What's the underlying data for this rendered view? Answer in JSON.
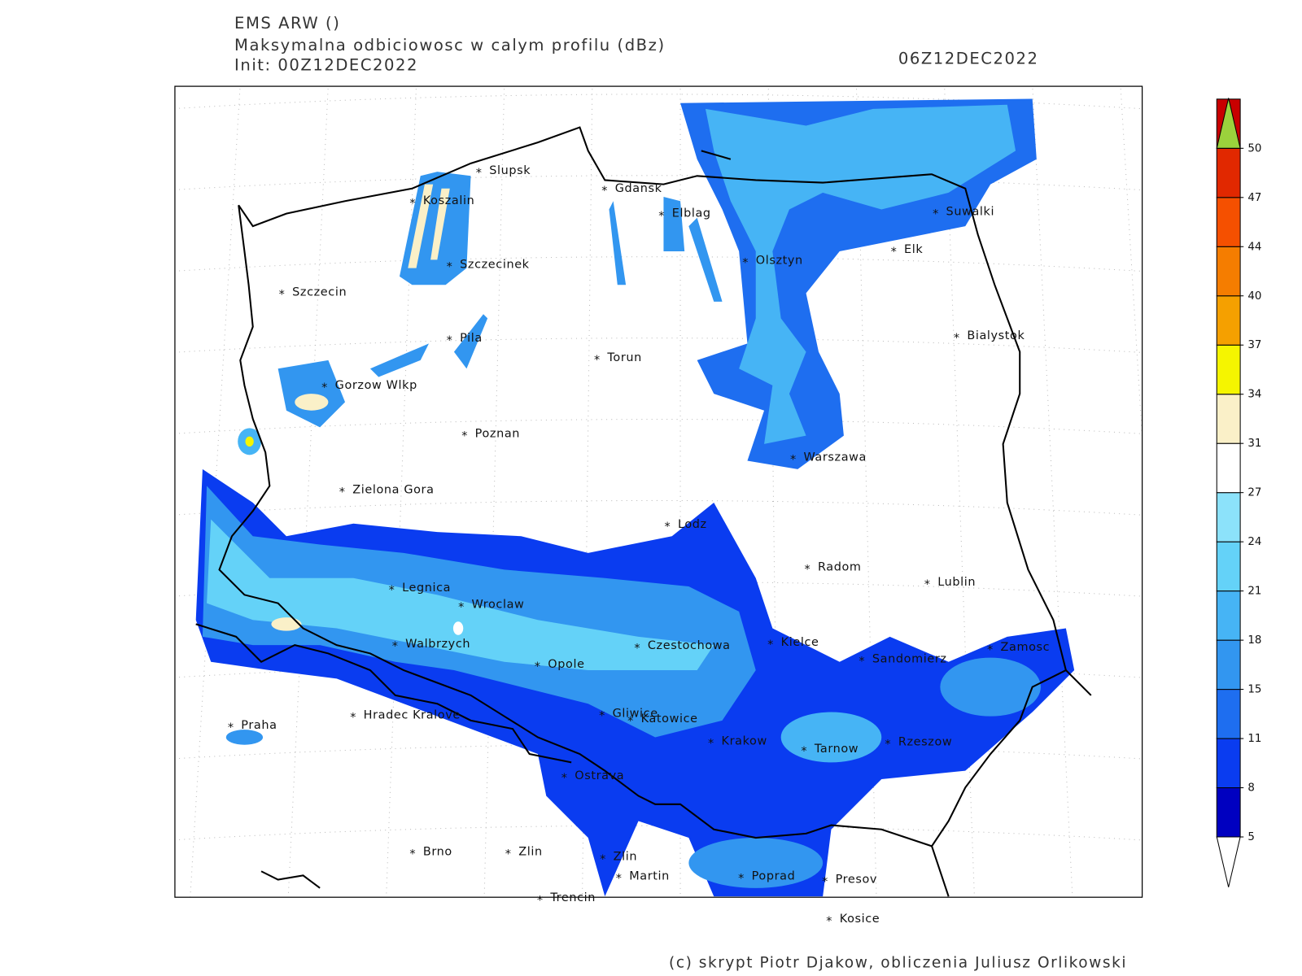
{
  "header": {
    "model": "EMS ARW ()",
    "title": "Maksymalna odbiciowosc w calym profilu (dBz)",
    "init": "Init: 00Z12DEC2022",
    "valid": "06Z12DEC2022"
  },
  "cities": [
    "Slupsk",
    "Koszalin",
    "Gdansk",
    "Elblag",
    "Suwalki",
    "Elk",
    "Olsztyn",
    "Szczecinek",
    "Szczecin",
    "Bialystok",
    "Pila",
    "Torun",
    "Gorzow Wlkp",
    "Poznan",
    "Warszawa",
    "Zielona Gora",
    "Lodz",
    "Radom",
    "Lublin",
    "Legnica",
    "Wroclaw",
    "Walbrzych",
    "Czestochowa",
    "Kielce",
    "Zamosc",
    "Opole",
    "Sandomierz",
    "Praha",
    "Hradec Kralove",
    "Gliwice",
    "Katowice",
    "Krakow",
    "Tarnow",
    "Rzeszow",
    "Ostrava",
    "Brno",
    "Zlin",
    "Zlin",
    "Martin",
    "Poprad",
    "Presov",
    "Trencin",
    "Kosice"
  ],
  "colorbar": {
    "levels": [
      5,
      8,
      11,
      15,
      18,
      21,
      24,
      27,
      31,
      34,
      37,
      40,
      44,
      47,
      50
    ],
    "colors": [
      "#0000c0",
      "#0a3cf0",
      "#1e6ef0",
      "#3296f0",
      "#46b4f5",
      "#64d2f8",
      "#8ce2fa",
      "#ffffff",
      "#faf0c8",
      "#f5f500",
      "#f5a000",
      "#f57d00",
      "#f55000",
      "#e12800",
      "#c80000"
    ],
    "over_color": "#9bd23c",
    "under_color": "#ffffff"
  },
  "footer": "(c) skrypt Piotr Djakow, obliczenia Juliusz Orlikowski"
}
